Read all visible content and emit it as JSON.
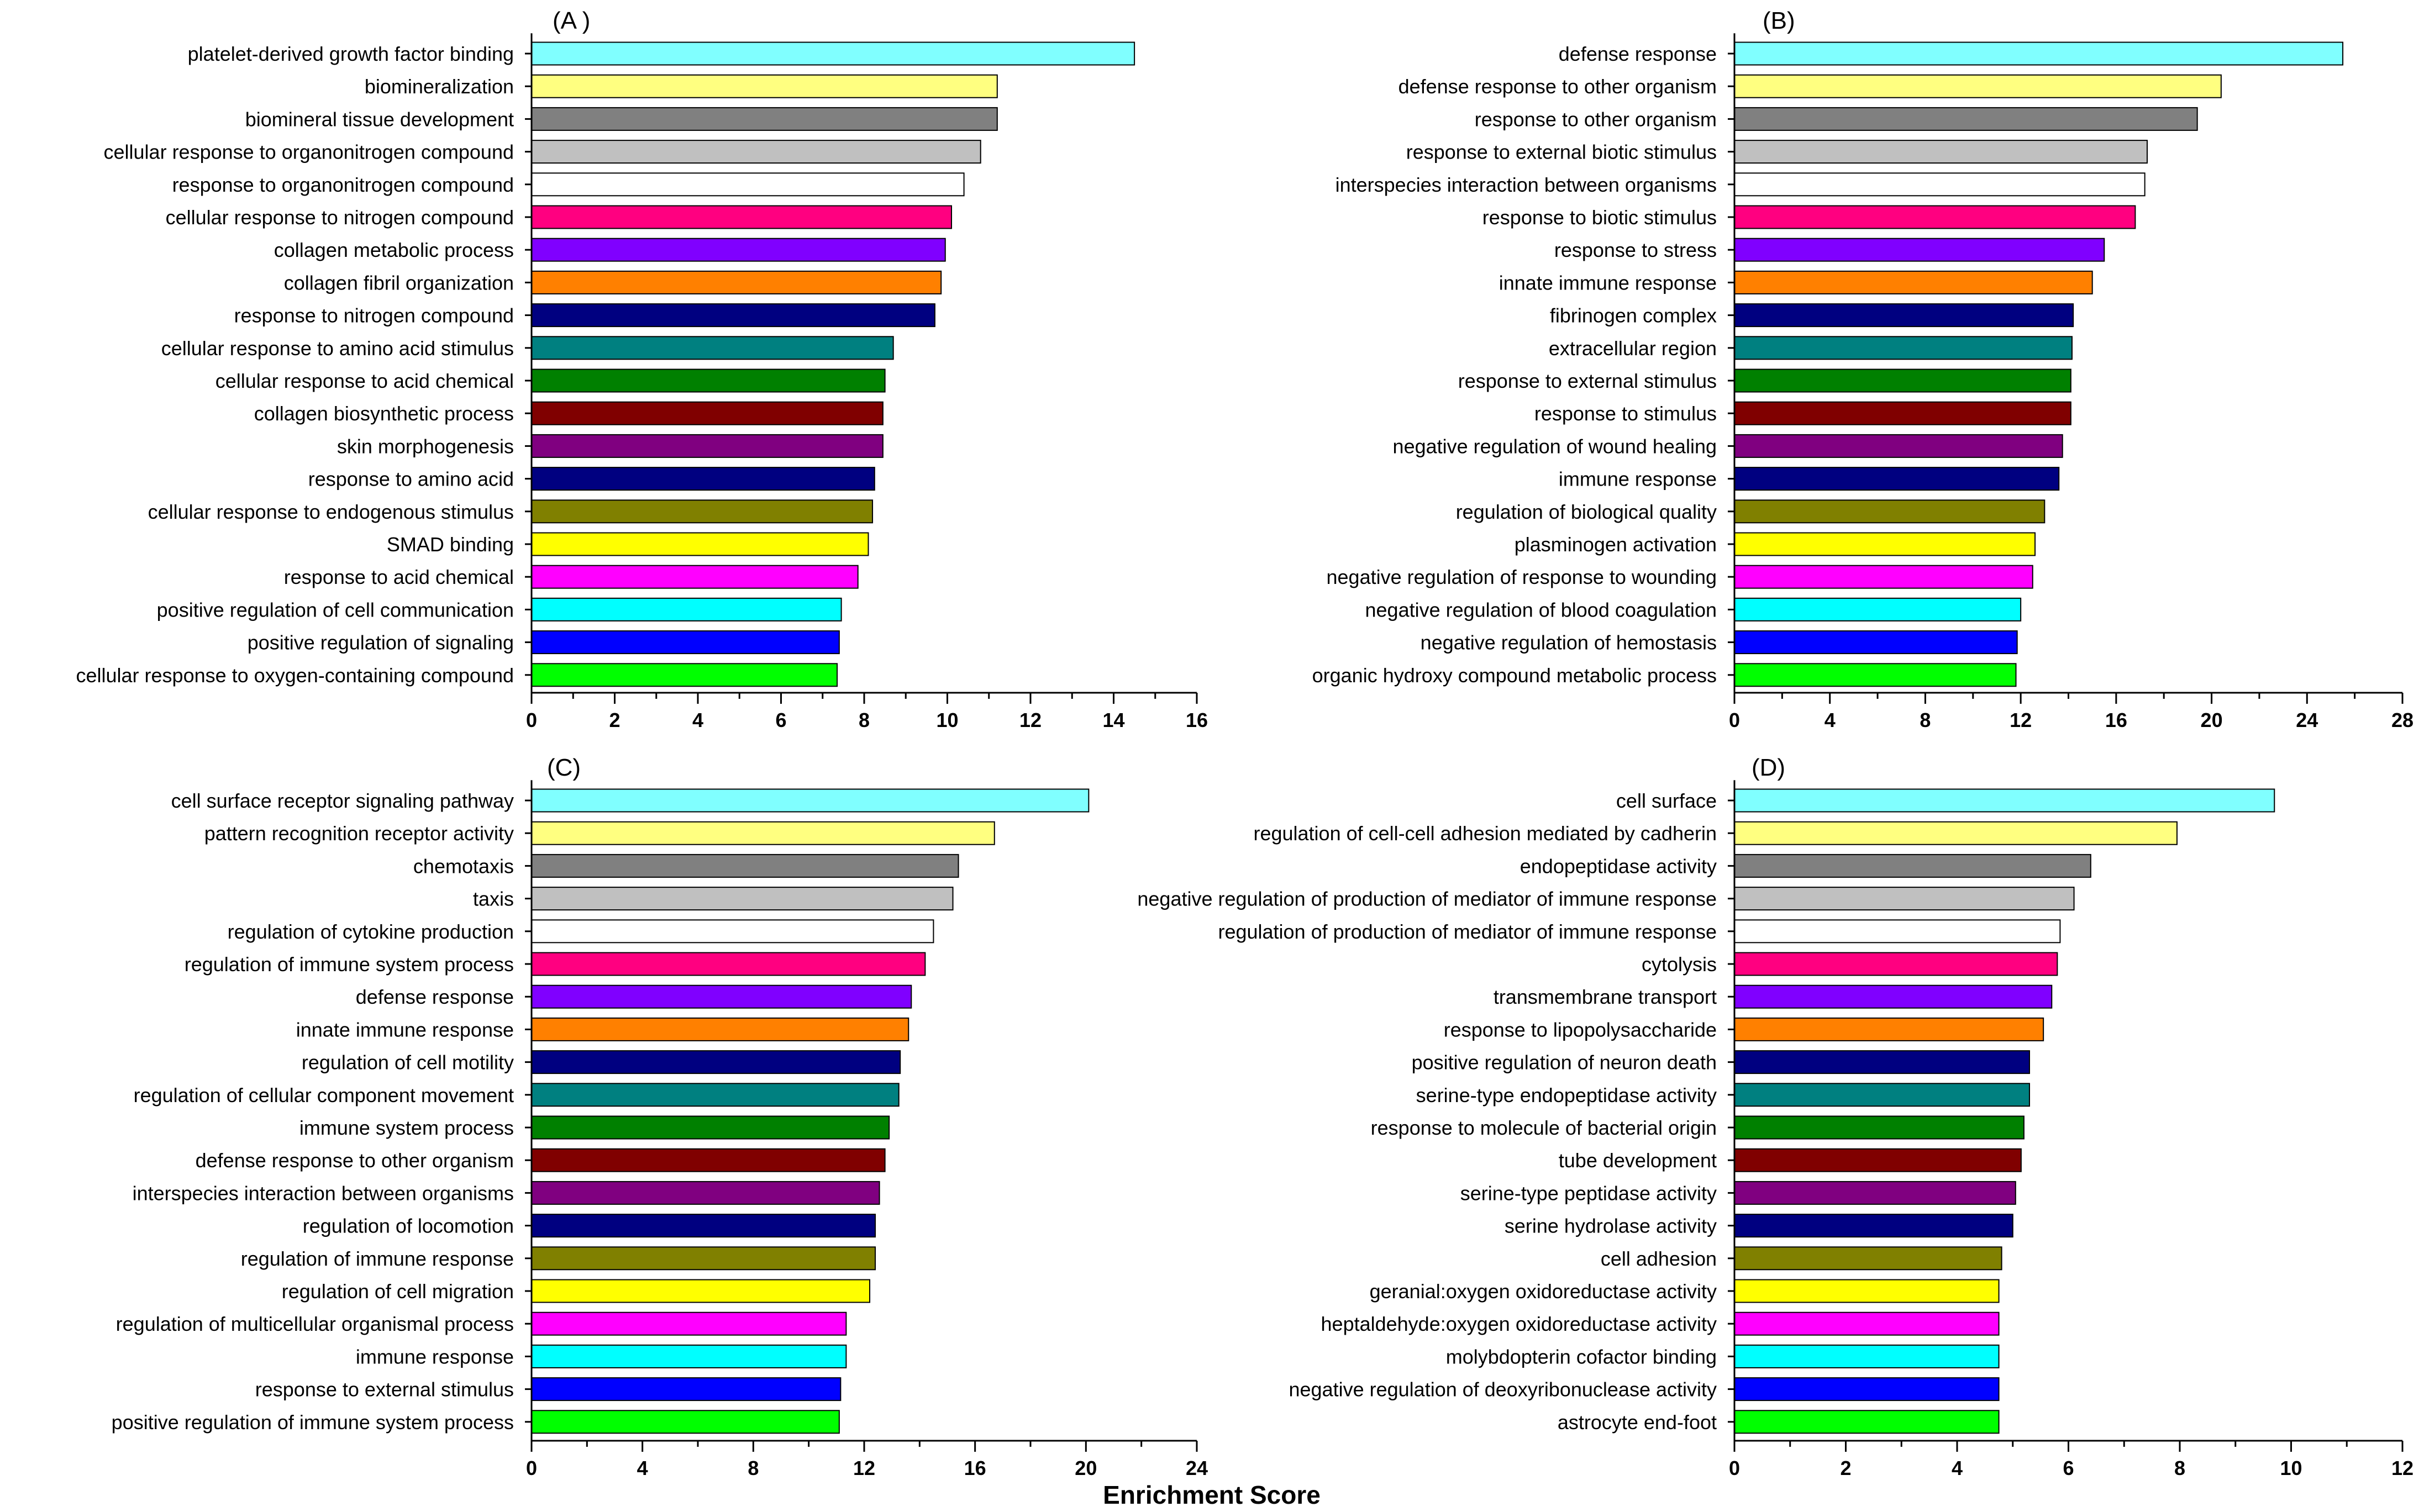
{
  "figure": {
    "xlabel": "Enrichment Score"
  },
  "bar_colors": [
    "#80ffff",
    "#ffff80",
    "#808080",
    "#c0c0c0",
    "#ffffff",
    "#ff0080",
    "#8000ff",
    "#ff8000",
    "#000080",
    "#008080",
    "#008000",
    "#800000",
    "#800080",
    "#000080",
    "#808000",
    "#ffff00",
    "#ff00ff",
    "#00ffff",
    "#0000ff",
    "#00ff00"
  ],
  "chart_data": [
    {
      "type": "bar",
      "orientation": "horizontal",
      "panel": "(A )",
      "xlim": [
        0,
        16
      ],
      "xticks": [
        0,
        2,
        4,
        6,
        8,
        10,
        12,
        14,
        16
      ],
      "categories": [
        "platelet-derived growth factor binding",
        "biomineralization",
        "biomineral tissue development",
        "cellular response to organonitrogen compound",
        "response to organonitrogen compound",
        "cellular response to nitrogen compound",
        "collagen metabolic process",
        "collagen fibril organization",
        "response to nitrogen compound",
        "cellular response to amino acid stimulus",
        "cellular response to acid chemical",
        "collagen biosynthetic process",
        "skin morphogenesis",
        "response to amino acid",
        "cellular response to endogenous stimulus",
        "SMAD binding",
        "response to acid chemical",
        "positive regulation of cell communication",
        "positive regulation of signaling",
        "cellular response to oxygen-containing compound"
      ],
      "values": [
        14.5,
        11.2,
        11.2,
        10.8,
        10.4,
        10.1,
        9.95,
        9.85,
        9.7,
        8.7,
        8.5,
        8.45,
        8.45,
        8.25,
        8.2,
        8.1,
        7.85,
        7.45,
        7.4,
        7.35
      ]
    },
    {
      "type": "bar",
      "orientation": "horizontal",
      "panel": "(B)",
      "xlim": [
        0,
        28
      ],
      "xticks": [
        0,
        4,
        8,
        12,
        16,
        20,
        24,
        28
      ],
      "categories": [
        "defense response",
        "defense response to other organism",
        "response to other organism",
        "response to external biotic stimulus",
        "interspecies interaction between organisms",
        "response to biotic stimulus",
        "response to stress",
        "innate immune response",
        "fibrinogen complex",
        "extracellular region",
        "response to external stimulus",
        "response to stimulus",
        "negative regulation of wound healing",
        "immune response",
        "regulation of biological quality",
        "plasminogen activation",
        "negative regulation of response to wounding",
        "negative regulation of blood coagulation",
        "negative regulation of hemostasis",
        "organic hydroxy compound metabolic process"
      ],
      "values": [
        25.5,
        20.4,
        19.4,
        17.3,
        17.2,
        16.8,
        15.5,
        15.0,
        14.2,
        14.15,
        14.1,
        14.1,
        13.75,
        13.6,
        13.0,
        12.6,
        12.5,
        12.0,
        11.85,
        11.8
      ]
    },
    {
      "type": "bar",
      "orientation": "horizontal",
      "panel": "(C)",
      "xlim": [
        0,
        24
      ],
      "xticks": [
        0,
        4,
        8,
        12,
        16,
        20,
        24
      ],
      "categories": [
        "cell surface receptor signaling pathway",
        "pattern recognition receptor activity",
        "chemotaxis",
        "taxis",
        "regulation of cytokine production",
        "regulation of immune system process",
        "defense response",
        "innate immune response",
        "regulation of cell motility",
        "regulation of cellular component movement",
        "immune system process",
        "defense response to other organism",
        "interspecies interaction between organisms",
        "regulation of locomotion",
        "regulation of immune response",
        "regulation of cell migration",
        "regulation of multicellular organismal process",
        "immune response",
        "response to external stimulus",
        "positive regulation of immune system process"
      ],
      "values": [
        20.1,
        16.7,
        15.4,
        15.2,
        14.5,
        14.2,
        13.7,
        13.6,
        13.3,
        13.25,
        12.9,
        12.75,
        12.55,
        12.4,
        12.4,
        12.2,
        11.35,
        11.35,
        11.15,
        11.1
      ]
    },
    {
      "type": "bar",
      "orientation": "horizontal",
      "panel": "(D)",
      "xlim": [
        0,
        12
      ],
      "xticks": [
        0,
        2,
        4,
        6,
        8,
        10,
        12
      ],
      "categories": [
        "cell surface",
        "regulation of cell-cell adhesion mediated by cadherin",
        "endopeptidase activity",
        "negative regulation of production of mediator of immune response",
        "regulation of production of mediator of immune response",
        "cytolysis",
        "transmembrane transport",
        "response to lipopolysaccharide",
        "positive regulation of neuron death",
        "serine-type endopeptidase activity",
        "response to molecule of bacterial origin",
        "tube development",
        "serine-type peptidase activity",
        "serine hydrolase activity",
        "cell adhesion",
        "geranial:oxygen oxidoreductase activity",
        "heptaldehyde:oxygen oxidoreductase activity",
        "molybdopterin cofactor binding",
        "negative regulation of deoxyribonuclease activity",
        "astrocyte end-foot"
      ],
      "values": [
        9.7,
        7.95,
        6.4,
        6.1,
        5.85,
        5.8,
        5.7,
        5.55,
        5.3,
        5.3,
        5.2,
        5.15,
        5.05,
        5.0,
        4.8,
        4.75,
        4.75,
        4.75,
        4.75,
        4.75
      ]
    }
  ]
}
